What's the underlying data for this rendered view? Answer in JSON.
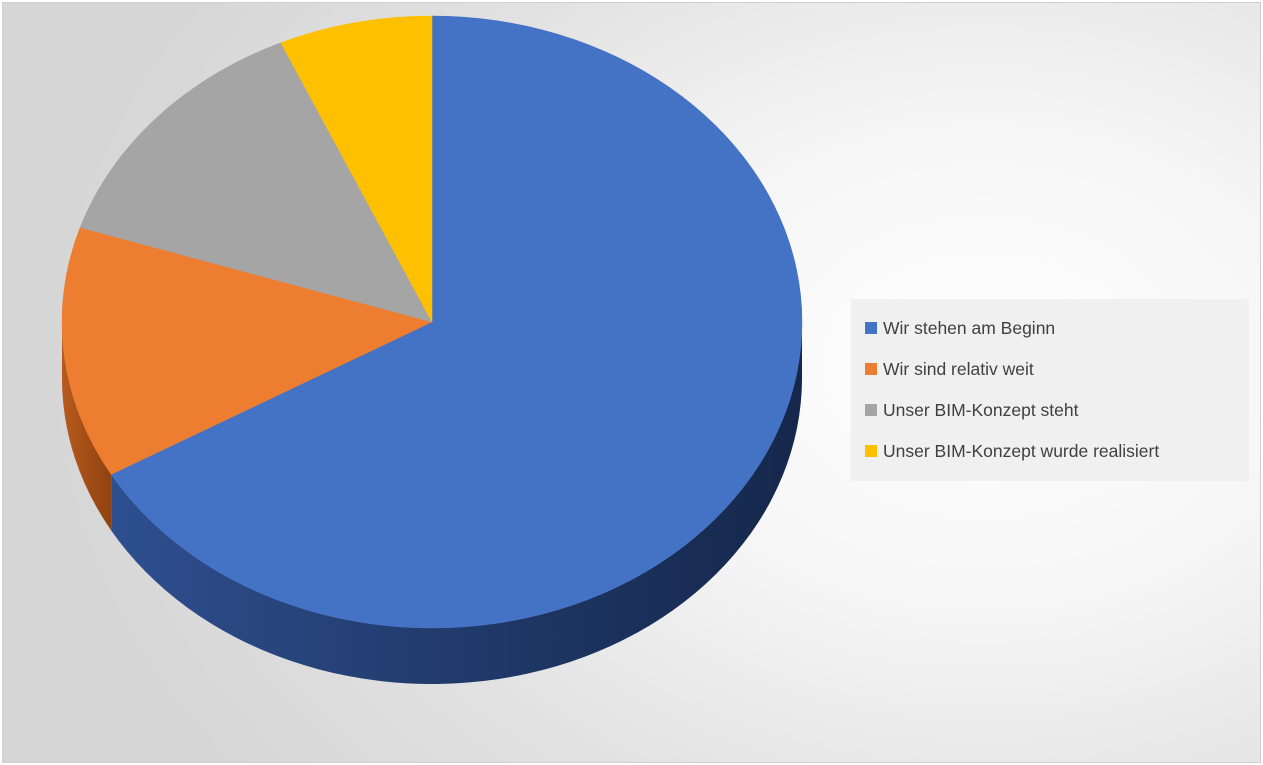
{
  "chart_data": {
    "type": "pie",
    "title": "",
    "style": "3d",
    "legend_position": "right",
    "categories": [
      "Wir stehen am Beginn",
      "Wir sind relativ weit",
      "Unser BIM-Konzept steht",
      "Unser BIM-Konzept wurde realisiert"
    ],
    "values": [
      66.7,
      13.3,
      13.3,
      6.7
    ],
    "colors": [
      "#4472C4",
      "#ED7D31",
      "#A5A5A5",
      "#FFC000"
    ]
  }
}
